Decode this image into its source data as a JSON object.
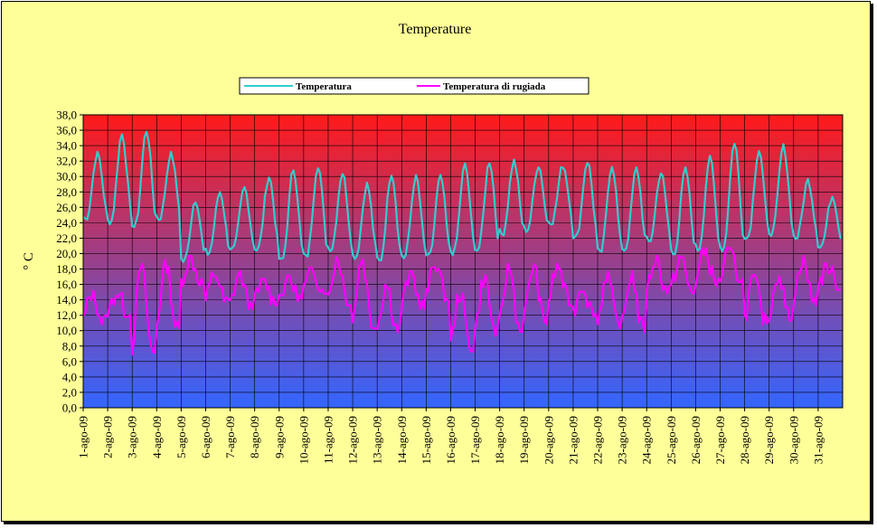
{
  "chart_data": {
    "type": "line",
    "title": "Temperature",
    "ylabel": "° C",
    "xlabel": "",
    "ylim": [
      0,
      38
    ],
    "ytick_step": 2,
    "yticks": [
      "0,0",
      "2,0",
      "4,0",
      "6,0",
      "8,0",
      "10,0",
      "12,0",
      "14,0",
      "16,0",
      "18,0",
      "20,0",
      "22,0",
      "24,0",
      "26,0",
      "28,0",
      "30,0",
      "32,0",
      "34,0",
      "36,0",
      "38,0"
    ],
    "categories": [
      "1-ago-09",
      "2-ago-09",
      "3-ago-09",
      "4-ago-09",
      "5-ago-09",
      "6-ago-09",
      "7-ago-09",
      "8-ago-09",
      "9-ago-09",
      "10-ago-09",
      "11-ago-09",
      "12-ago-09",
      "13-ago-09",
      "14-ago-09",
      "15-ago-09",
      "16-ago-09",
      "17-ago-09",
      "18-ago-09",
      "19-ago-09",
      "20-ago-09",
      "21-ago-09",
      "22-ago-09",
      "23-ago-09",
      "24-ago-09",
      "25-ago-09",
      "26-ago-09",
      "27-ago-09",
      "28-ago-09",
      "29-ago-09",
      "30-ago-09",
      "31-ago-09"
    ],
    "grid": true,
    "legend_position": "top",
    "background_gradient": [
      "#ff1a1a",
      "#3366ff"
    ],
    "series": [
      {
        "name": "Temperatura",
        "color": "#33cccc",
        "daily_min": [
          24.5,
          24.0,
          23.5,
          24.5,
          19.0,
          20.0,
          20.5,
          20.5,
          19.0,
          19.5,
          20.5,
          19.5,
          19.0,
          19.5,
          19.5,
          20.0,
          20.5,
          22.5,
          23.0,
          24.0,
          22.0,
          20.0,
          20.5,
          21.5,
          20.0,
          20.5,
          20.5,
          22.0,
          22.5,
          22.0,
          21.0
        ],
        "daily_max": [
          33.0,
          35.5,
          36.0,
          33.0,
          27.0,
          28.0,
          28.5,
          30.0,
          31.0,
          31.5,
          30.5,
          29.0,
          30.5,
          30.0,
          30.0,
          31.5,
          32.0,
          32.0,
          31.5,
          31.5,
          32.0,
          31.5,
          31.0,
          30.5,
          31.0,
          32.5,
          34.5,
          33.5,
          34.0,
          29.5,
          27.5
        ]
      },
      {
        "name": "Temperatura di rugiada",
        "color": "#ff00ff",
        "daily_min": [
          11.0,
          12.0,
          7.0,
          10.0,
          16.0,
          13.5,
          13.0,
          13.5,
          14.0,
          15.0,
          13.5,
          10.5,
          10.0,
          13.0,
          14.0,
          7.5,
          9.5,
          10.0,
          11.0,
          13.5,
          12.0,
          10.5,
          10.0,
          15.0,
          15.0,
          16.0,
          16.5,
          11.0,
          11.5,
          13.5,
          15.5
        ],
        "daily_max": [
          15.0,
          15.0,
          18.5,
          19.0,
          19.5,
          17.5,
          17.5,
          16.5,
          17.0,
          18.0,
          19.5,
          19.5,
          16.0,
          17.5,
          19.0,
          15.0,
          17.0,
          18.5,
          18.5,
          18.5,
          16.0,
          17.5,
          17.5,
          19.5,
          19.5,
          20.5,
          20.5,
          17.0,
          17.5,
          19.5,
          18.5
        ]
      }
    ]
  }
}
